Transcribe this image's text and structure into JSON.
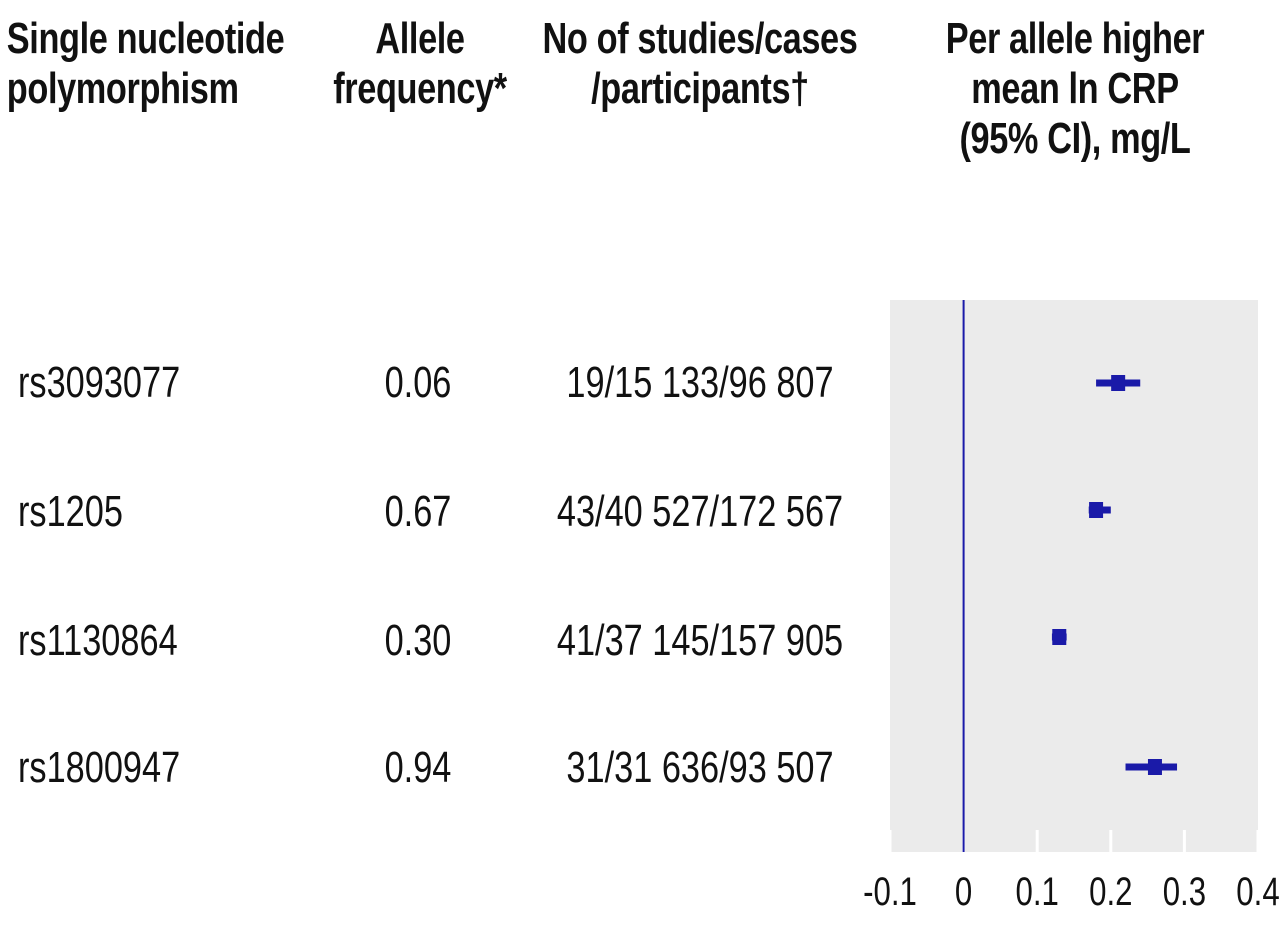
{
  "header": {
    "snp": [
      "Single nucleotide",
      "polymorphism"
    ],
    "allele_freq": [
      "Allele",
      "frequency*"
    ],
    "studies": [
      "No of studies/cases",
      "/participants†"
    ],
    "effect": [
      "Per allele higher",
      "mean ln CRP",
      "(95% CI), mg/L"
    ]
  },
  "rows": [
    {
      "snp": "rs3093077",
      "allele_freq": "0.06",
      "studies": "19/15 133/96 807"
    },
    {
      "snp": "rs1205",
      "allele_freq": "0.67",
      "studies": "43/40 527/172 567"
    },
    {
      "snp": "rs1130864",
      "allele_freq": "0.30",
      "studies": "41/37 145/157 905"
    },
    {
      "snp": "rs1800947",
      "allele_freq": "0.94",
      "studies": "31/31 636/93 507"
    }
  ],
  "chart_data": {
    "type": "forest",
    "xlim": [
      -0.1,
      0.4
    ],
    "x_ticks": [
      "-0.1",
      "0",
      "0.1",
      "0.2",
      "0.3",
      "0.4"
    ],
    "x_tick_values": [
      -0.1,
      0,
      0.1,
      0.2,
      0.3,
      0.4
    ],
    "reference_line": 0,
    "points": [
      {
        "label": "rs3093077",
        "estimate": 0.21,
        "ci_low": 0.18,
        "ci_high": 0.24
      },
      {
        "label": "rs1205",
        "estimate": 0.18,
        "ci_low": 0.17,
        "ci_high": 0.2
      },
      {
        "label": "rs1130864",
        "estimate": 0.13,
        "ci_low": 0.12,
        "ci_high": 0.14
      },
      {
        "label": "rs1800947",
        "estimate": 0.26,
        "ci_low": 0.22,
        "ci_high": 0.29
      }
    ],
    "colors": {
      "panel": "#ebebeb",
      "point": "#1a1aa8",
      "reference": "#1a1aa8",
      "grid": "#ffffff"
    },
    "grid": true
  }
}
